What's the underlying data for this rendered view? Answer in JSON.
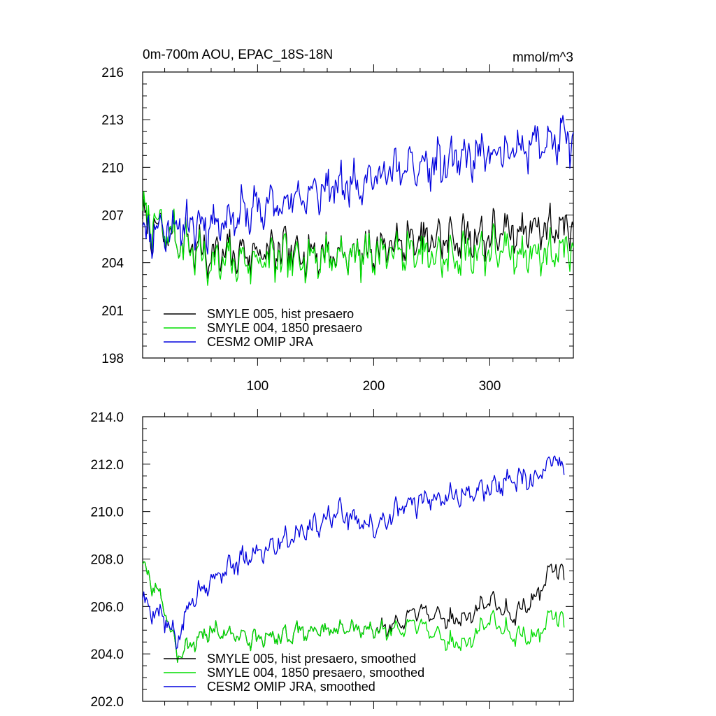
{
  "chart_data": [
    {
      "type": "line",
      "title": "0m-700m AOU, EPAC_18S-18N",
      "units": "mmol/m^3",
      "xlabel": "",
      "ylabel": "",
      "xlim": [
        1,
        372
      ],
      "ylim": [
        198,
        216
      ],
      "xticks": [
        100,
        200,
        300
      ],
      "xtick_labels": [
        "100",
        "200",
        "300"
      ],
      "yticks": [
        198,
        201,
        204,
        207,
        210,
        213,
        216
      ],
      "ytick_labels": [
        "198",
        "201",
        "204",
        "207",
        "210",
        "213",
        "216"
      ],
      "legend_position": "bottom-left",
      "series": [
        {
          "name": "SMYLE 005, hist presaero",
          "color": "#000000",
          "start": 1,
          "end": 372,
          "anchors": [
            [
              1,
              206.5
            ],
            [
              60,
              204.5
            ],
            [
              120,
              204.7
            ],
            [
              180,
              204.5
            ],
            [
              220,
              205.2
            ],
            [
              260,
              205.5
            ],
            [
              300,
              205.7
            ],
            [
              340,
              206.2
            ],
            [
              372,
              206.3
            ]
          ],
          "amplitude": 1.5,
          "seed": 7
        },
        {
          "name": "SMYLE 004, 1850 presaero",
          "color": "#00dd00",
          "start": 1,
          "end": 372,
          "anchors": [
            [
              1,
              207.0
            ],
            [
              60,
              204.0
            ],
            [
              120,
              204.2
            ],
            [
              180,
              204.5
            ],
            [
              220,
              204.7
            ],
            [
              260,
              204.3
            ],
            [
              300,
              204.8
            ],
            [
              340,
              204.5
            ],
            [
              372,
              205.0
            ]
          ],
          "amplitude": 1.5,
          "seed": 7
        },
        {
          "name": "CESM2 OMIP JRA",
          "color": "#0000dd",
          "start": 1,
          "end": 372,
          "anchors": [
            [
              1,
              206.0
            ],
            [
              60,
              206.5
            ],
            [
              120,
              207.8
            ],
            [
              180,
              209.0
            ],
            [
              220,
              209.8
            ],
            [
              260,
              210.2
            ],
            [
              300,
              210.8
            ],
            [
              340,
              211.5
            ],
            [
              372,
              211.8
            ]
          ],
          "amplitude": 1.6,
          "seed": 11
        }
      ]
    },
    {
      "type": "line",
      "title": "",
      "xlabel": "",
      "ylabel": "",
      "xlim": [
        1,
        372
      ],
      "ylim": [
        202.0,
        214.0
      ],
      "xticks": [
        100,
        200,
        300
      ],
      "xtick_labels": [
        "",
        "",
        ""
      ],
      "yticks": [
        202.0,
        204.0,
        206.0,
        208.0,
        210.0,
        212.0,
        214.0
      ],
      "ytick_labels": [
        "202.0",
        "204.0",
        "206.0",
        "208.0",
        "210.0",
        "212.0",
        "214.0"
      ],
      "legend_position": "bottom-left",
      "series": [
        {
          "name": "SMYLE 005, hist presaero, smoothed",
          "color": "#000000",
          "start": 1,
          "end": 364,
          "anchors": [
            [
              1,
              207.7
            ],
            [
              20,
              206.0
            ],
            [
              30,
              204.0
            ],
            [
              60,
              205.0
            ],
            [
              100,
              204.6
            ],
            [
              150,
              205.0
            ],
            [
              200,
              205.0
            ],
            [
              225,
              205.3
            ],
            [
              240,
              206.0
            ],
            [
              260,
              205.4
            ],
            [
              280,
              205.5
            ],
            [
              300,
              206.3
            ],
            [
              320,
              205.6
            ],
            [
              340,
              206.4
            ],
            [
              355,
              207.8
            ],
            [
              364,
              207.2
            ]
          ],
          "amplitude": 0.45,
          "seed": 3
        },
        {
          "name": "SMYLE 004, 1850 presaero, smoothed",
          "color": "#00dd00",
          "start": 1,
          "end": 364,
          "anchors": [
            [
              1,
              207.7
            ],
            [
              20,
              206.0
            ],
            [
              30,
              204.0
            ],
            [
              60,
              205.0
            ],
            [
              100,
              204.6
            ],
            [
              150,
              205.0
            ],
            [
              200,
              205.0
            ],
            [
              225,
              205.0
            ],
            [
              240,
              205.4
            ],
            [
              260,
              204.5
            ],
            [
              280,
              204.4
            ],
            [
              300,
              205.5
            ],
            [
              320,
              204.8
            ],
            [
              340,
              204.7
            ],
            [
              355,
              205.8
            ],
            [
              364,
              205.2
            ]
          ],
          "amplitude": 0.45,
          "seed": 3
        },
        {
          "name": "CESM2 OMIP JRA, smoothed",
          "color": "#0000dd",
          "start": 1,
          "end": 364,
          "anchors": [
            [
              1,
              206.2
            ],
            [
              20,
              205.5
            ],
            [
              30,
              204.5
            ],
            [
              45,
              206.5
            ],
            [
              70,
              207.5
            ],
            [
              100,
              208.3
            ],
            [
              140,
              209.2
            ],
            [
              170,
              210.0
            ],
            [
              200,
              209.3
            ],
            [
              225,
              210.2
            ],
            [
              250,
              210.6
            ],
            [
              280,
              210.7
            ],
            [
              300,
              211.0
            ],
            [
              320,
              211.3
            ],
            [
              340,
              211.3
            ],
            [
              358,
              212.5
            ],
            [
              364,
              211.4
            ]
          ],
          "amplitude": 0.55,
          "seed": 5
        }
      ]
    }
  ]
}
